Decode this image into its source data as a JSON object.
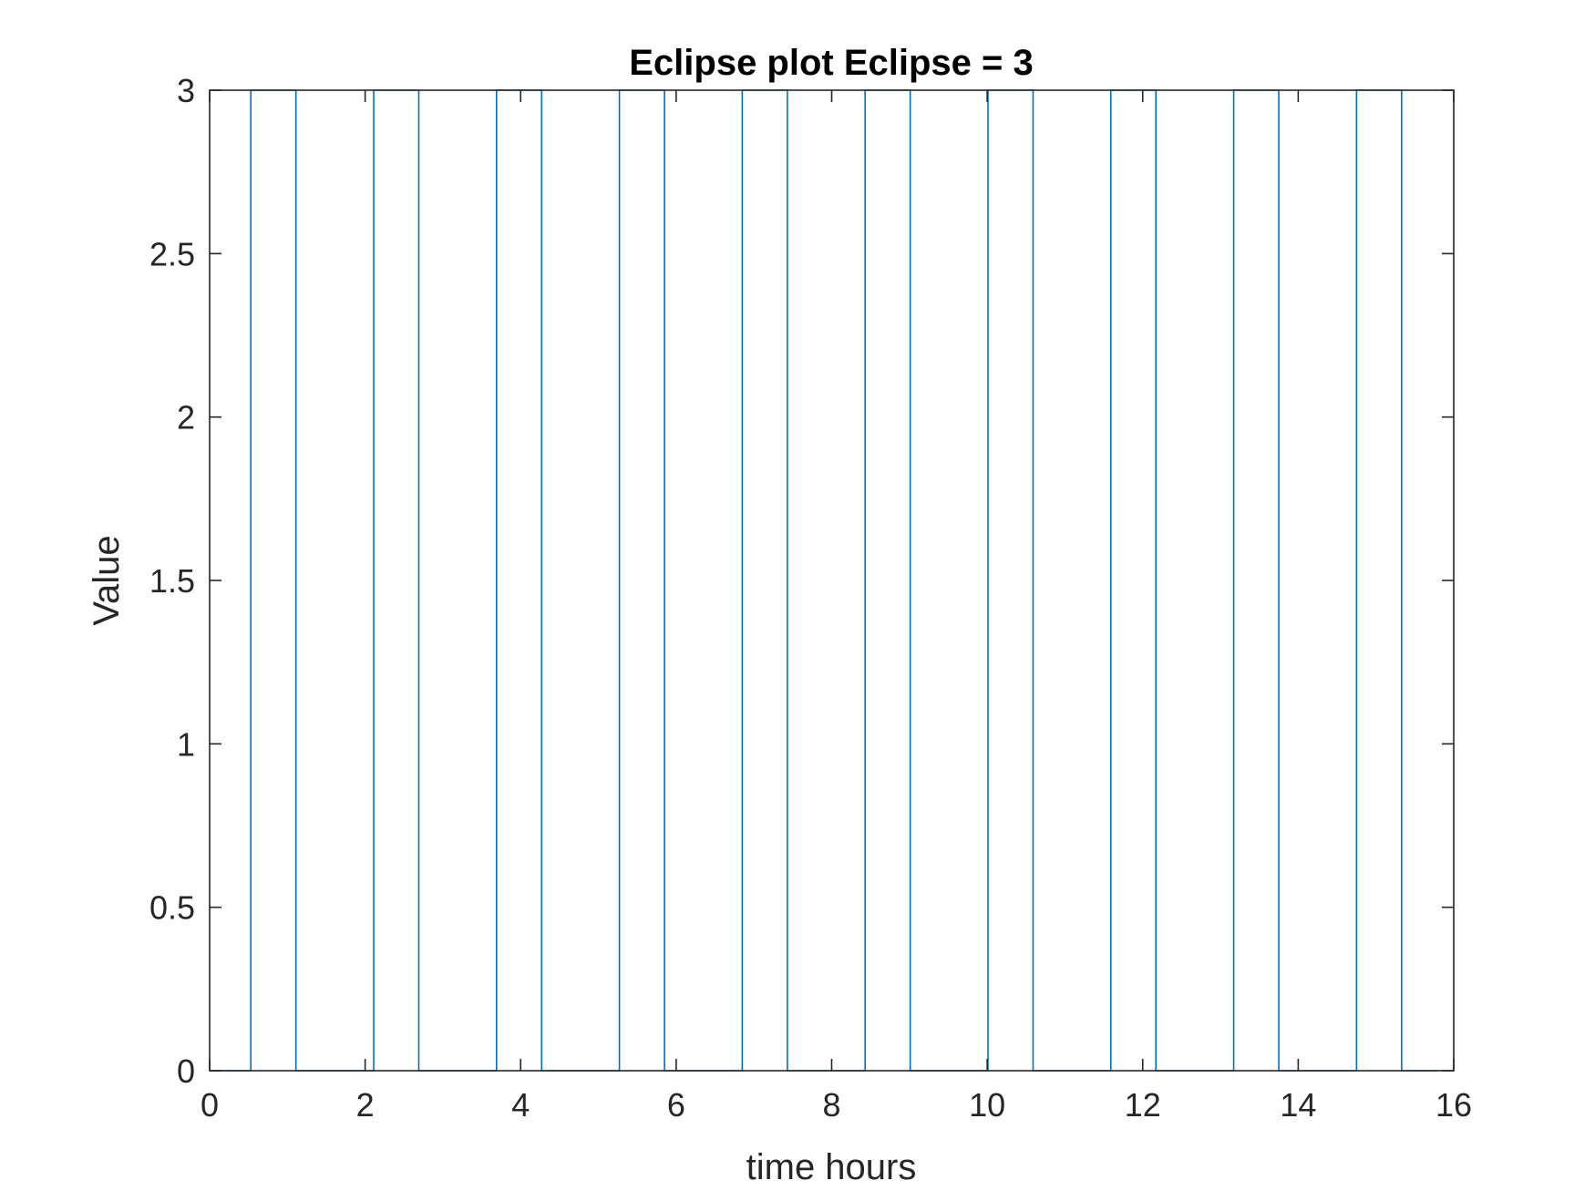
{
  "chart_data": {
    "type": "line",
    "title": "Eclipse plot Eclipse = 3",
    "xlabel": "time hours",
    "ylabel": "Value",
    "xlim": [
      0,
      16
    ],
    "ylim": [
      0,
      3
    ],
    "xticks": [
      0,
      2,
      4,
      6,
      8,
      10,
      12,
      14,
      16
    ],
    "xtick_labels": [
      "0",
      "2",
      "4",
      "6",
      "8",
      "10",
      "12",
      "14",
      "16"
    ],
    "yticks": [
      0,
      0.5,
      1,
      1.5,
      2,
      2.5,
      3
    ],
    "ytick_labels": [
      "0",
      "0.5",
      "1",
      "1.5",
      "2",
      "2.5",
      "3"
    ],
    "grid": false,
    "box": true,
    "line_style": "step",
    "series": [
      {
        "color": "#0072bd",
        "x": [
          0,
          0.53,
          0.53,
          1.11,
          1.11,
          2.11,
          2.11,
          2.69,
          2.69,
          3.69,
          3.69,
          4.27,
          4.27,
          5.27,
          5.27,
          5.85,
          5.85,
          6.85,
          6.85,
          7.43,
          7.43,
          8.43,
          8.43,
          9.01,
          9.01,
          10.01,
          10.01,
          10.59,
          10.59,
          11.59,
          11.59,
          12.17,
          12.17,
          13.17,
          13.17,
          13.75,
          13.75,
          14.75,
          14.75,
          15.33,
          15.33,
          15.8
        ],
        "y": [
          0,
          0,
          3,
          3,
          0,
          0,
          3,
          3,
          0,
          0,
          3,
          3,
          0,
          0,
          3,
          3,
          0,
          0,
          3,
          3,
          0,
          0,
          3,
          3,
          0,
          0,
          3,
          3,
          0,
          0,
          3,
          3,
          0,
          0,
          3,
          3,
          0,
          0,
          3,
          3,
          0,
          0
        ]
      }
    ]
  }
}
